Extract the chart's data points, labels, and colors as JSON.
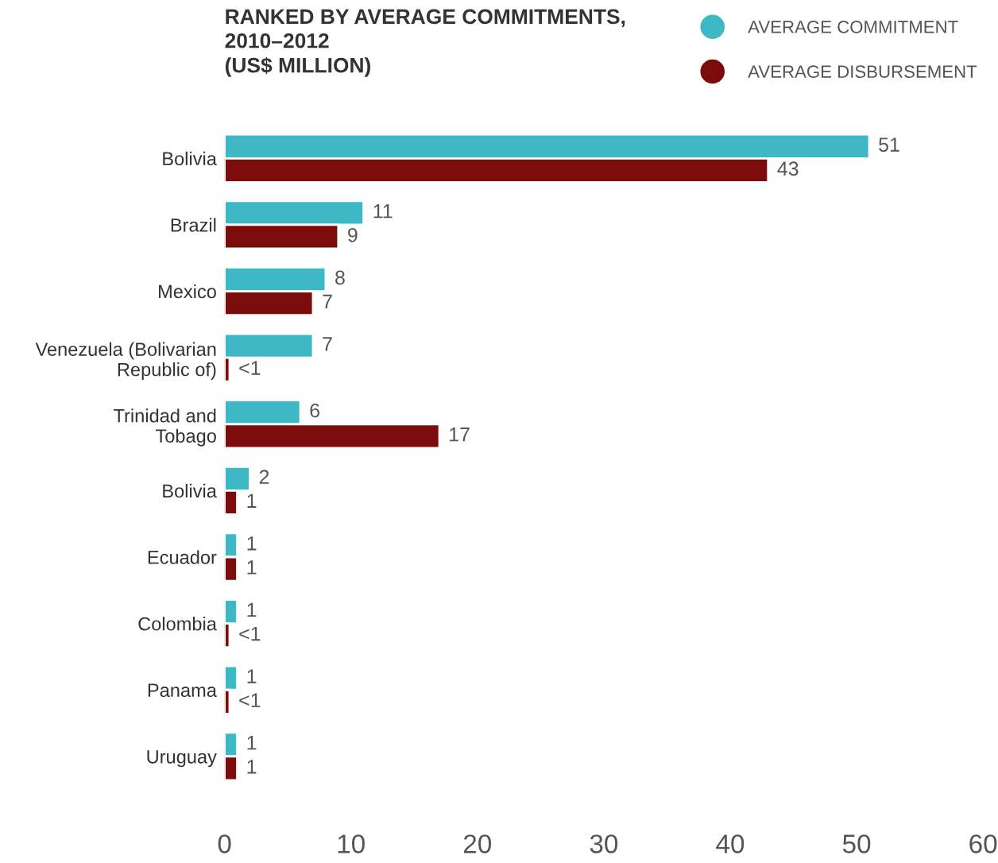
{
  "chart_data": {
    "type": "bar",
    "orientation": "horizontal",
    "title": "RANKED BY AVERAGE COMMITMENTS,\n2010–2012\n(US$ MILLION)",
    "categories": [
      "Bolivia",
      "Brazil",
      "Mexico",
      "Venezuela (Bolivarian\nRepublic of)",
      "Trinidad and\nTobago",
      "Bolivia",
      "Ecuador",
      "Colombia",
      "Panama",
      "Uruguay"
    ],
    "series": [
      {
        "name": "AVERAGE COMMITMENT",
        "color": "#3fb8c6",
        "values": [
          51,
          11,
          8,
          7,
          6,
          2,
          1,
          1,
          1,
          1
        ],
        "value_labels": [
          "51",
          "11",
          "8",
          "7",
          "6",
          "2",
          "1",
          "1",
          "1",
          "1"
        ]
      },
      {
        "name": "AVERAGE DISBURSEMENT",
        "color": "#7a0c0c",
        "values": [
          43,
          9,
          7,
          0.4,
          17,
          1,
          1,
          0.4,
          0.4,
          1
        ],
        "value_labels": [
          "43",
          "9",
          "7",
          "<1",
          "17",
          "1",
          "1",
          "<1",
          "<1",
          "1"
        ]
      }
    ],
    "xlim": [
      0,
      60
    ],
    "xticks": [
      0,
      10,
      20,
      30,
      40,
      50,
      60
    ],
    "grid": false,
    "legend": "top right"
  }
}
